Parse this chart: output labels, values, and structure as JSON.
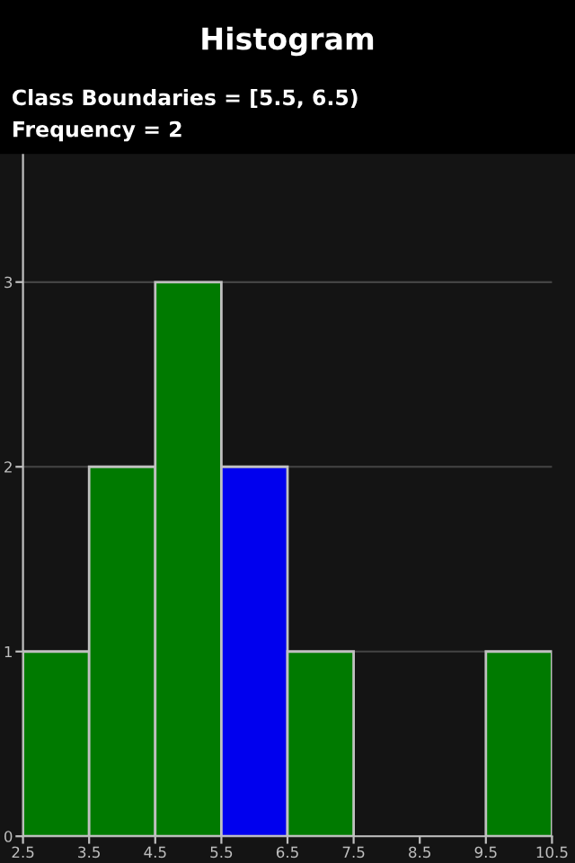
{
  "chart_data": {
    "type": "histogram",
    "title": "Histogram",
    "annotations": [
      "Class Boundaries = [5.5, 6.5)",
      "Frequency = 2"
    ],
    "bins": [
      2.5,
      3.5,
      4.5,
      5.5,
      6.5,
      7.5,
      8.5,
      9.5,
      10.5
    ],
    "values": [
      1,
      2,
      3,
      2,
      1,
      0,
      0,
      1
    ],
    "colors": [
      "#007a00",
      "#007a00",
      "#007a00",
      "#0000ee",
      "#007a00",
      "#007a00",
      "#007a00",
      "#007a00"
    ],
    "xlim": [
      2.5,
      10.5
    ],
    "xticks": [
      2.5,
      3.5,
      4.5,
      5.5,
      6.5,
      7.5,
      8.5,
      9.5,
      10.5
    ],
    "ylim": [
      0,
      3.7
    ],
    "yticks": [
      0,
      1,
      2,
      3
    ],
    "grid": "y"
  }
}
